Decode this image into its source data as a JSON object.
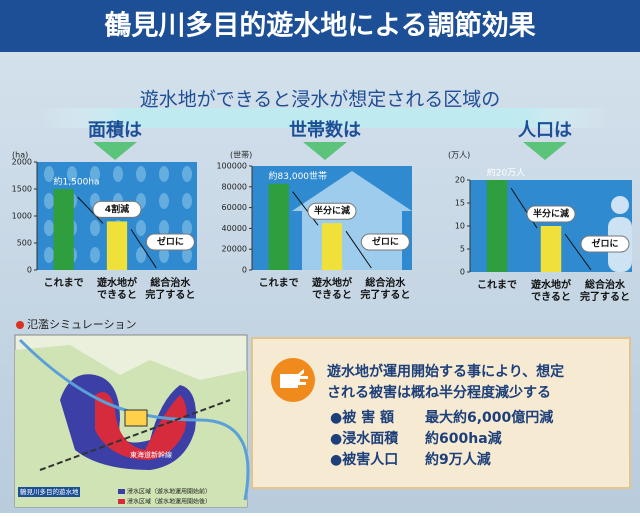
{
  "header": {
    "title": "鶴見川多目的遊水地による調節効果"
  },
  "banner": {
    "text": "遊水地ができると浸水が想定される区域の"
  },
  "chart_data": [
    {
      "type": "bar",
      "title": "面積は",
      "ylabel": "(ha)",
      "categories": [
        "これまで",
        "遊水地が\nできると",
        "総合治水\n完了すると"
      ],
      "values": [
        1500,
        900,
        0
      ],
      "value_labels": [
        "約1,500ha",
        null,
        null
      ],
      "annotations": [
        "4割減",
        "ゼロに"
      ],
      "colors": [
        "#2f9e3e",
        "#f0e03a",
        "#2f9e3e"
      ],
      "ylim": [
        0,
        2000
      ],
      "yticks": [
        0,
        500,
        1000,
        1500,
        2000
      ]
    },
    {
      "type": "bar",
      "title": "世帯数は",
      "ylabel": "(世帯)",
      "categories": [
        "これまで",
        "遊水地が\nできると",
        "総合治水\n完了すると"
      ],
      "values": [
        83000,
        45000,
        0
      ],
      "value_labels": [
        "約83,000世帯",
        null,
        null
      ],
      "annotations": [
        "半分に減",
        "ゼロに"
      ],
      "colors": [
        "#2f9e3e",
        "#f0e03a",
        "#2f9e3e"
      ],
      "ylim": [
        0,
        100000
      ],
      "yticks": [
        0,
        20000,
        40000,
        60000,
        80000,
        100000
      ]
    },
    {
      "type": "bar",
      "title": "人口は",
      "ylabel": "(万人)",
      "categories": [
        "これまで",
        "遊水地が\nできると",
        "総合治水\n完了すると"
      ],
      "values": [
        20,
        10,
        0
      ],
      "value_labels": [
        "約20万人",
        null,
        null
      ],
      "annotations": [
        "半分に減",
        "ゼロに"
      ],
      "colors": [
        "#2f9e3e",
        "#f0e03a",
        "#2f9e3e"
      ],
      "ylim": [
        0,
        20
      ],
      "yticks": [
        0,
        5,
        10,
        15,
        20
      ]
    }
  ],
  "map": {
    "title": "氾濫シミュレーション",
    "labels": [
      "東海道新幹線",
      "鶴見川多目的遊水地"
    ],
    "legend": [
      "浸水区域（遊水地運用開始前）",
      "浸水区域（遊水地運用開始後）"
    ]
  },
  "summary": {
    "lead": [
      "遊水地が運用開始する事により、想定",
      "される被害は概ね半分程度減少する"
    ],
    "items": [
      {
        "label": "●被 害 額",
        "value": "最大約6,000億円減"
      },
      {
        "label": "●浸水面積",
        "value": "約600ha減"
      },
      {
        "label": "●被害人口",
        "value": "約9万人減"
      }
    ]
  }
}
